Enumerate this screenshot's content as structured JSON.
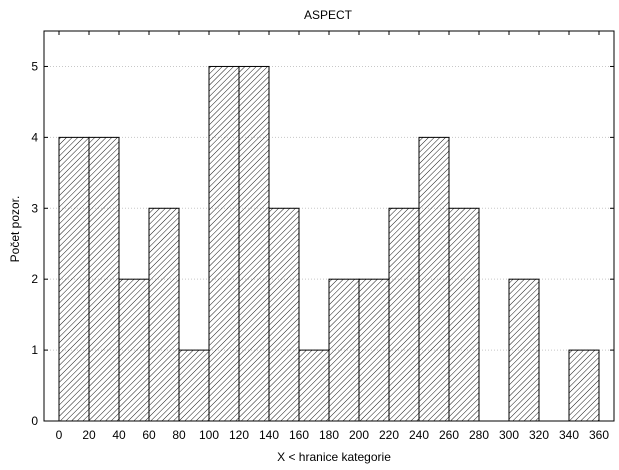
{
  "chart_data": {
    "type": "bar",
    "title": "ASPECT",
    "xlabel": "X < hranice kategorie",
    "ylabel": "Počet pozor.",
    "bin_edges": [
      0,
      20,
      40,
      60,
      80,
      100,
      120,
      140,
      160,
      180,
      200,
      220,
      240,
      260,
      280,
      300,
      320,
      340,
      360
    ],
    "values": [
      4,
      4,
      2,
      3,
      1,
      5,
      5,
      3,
      1,
      2,
      2,
      3,
      4,
      3,
      0,
      2,
      0,
      1
    ],
    "xlim": [
      -10,
      370
    ],
    "ylim": [
      0,
      5.5
    ],
    "x_ticks": [
      0,
      20,
      40,
      60,
      80,
      100,
      120,
      140,
      160,
      180,
      200,
      220,
      240,
      260,
      280,
      300,
      320,
      340,
      360
    ],
    "y_ticks": [
      0,
      1,
      2,
      3,
      4,
      5
    ],
    "grid": "horizontal dotted",
    "bar_fill": "diagonal hatch",
    "colors": {
      "bar_edge": "#000000",
      "hatch": "#000000",
      "grid": "#c8c8c8",
      "background": "#ffffff"
    }
  }
}
